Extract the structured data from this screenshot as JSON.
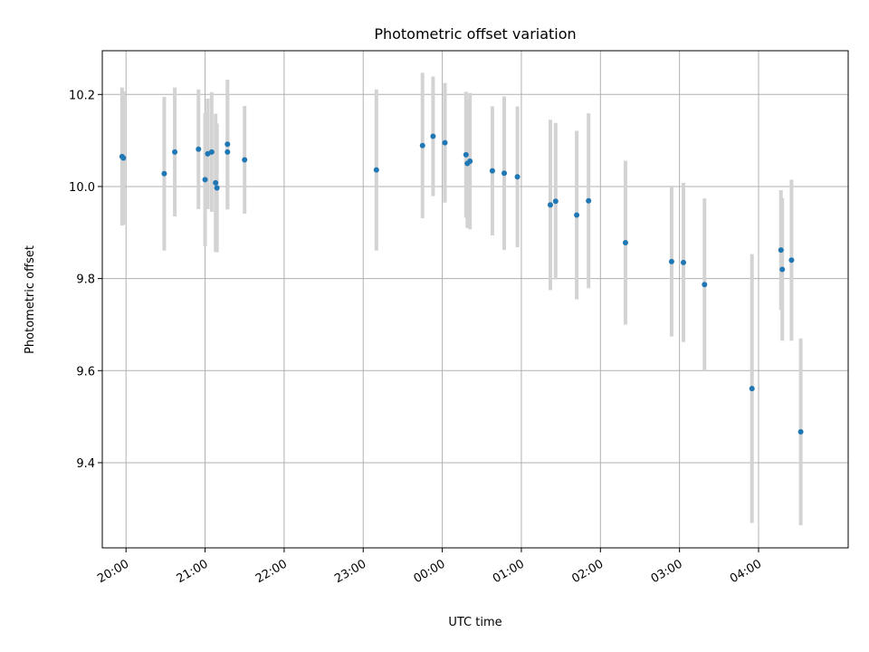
{
  "chart_data": {
    "type": "scatter",
    "title": "Photometric offset variation",
    "xlabel": "UTC time",
    "ylabel": "Photometric offset",
    "xlim": [
      "19:42",
      "29:08"
    ],
    "ylim": [
      9.215,
      10.295
    ],
    "grid": true,
    "x_ticks": [
      {
        "label": "20:00",
        "t": "20:00"
      },
      {
        "label": "21:00",
        "t": "21:00"
      },
      {
        "label": "22:00",
        "t": "22:00"
      },
      {
        "label": "23:00",
        "t": "23:00"
      },
      {
        "label": "00:00",
        "t": "24:00"
      },
      {
        "label": "01:00",
        "t": "25:00"
      },
      {
        "label": "02:00",
        "t": "26:00"
      },
      {
        "label": "03:00",
        "t": "27:00"
      },
      {
        "label": "04:00",
        "t": "28:00"
      }
    ],
    "y_ticks": [
      {
        "label": "9.4",
        "value": 9.4
      },
      {
        "label": "9.6",
        "value": 9.6
      },
      {
        "label": "9.8",
        "value": 9.8
      },
      {
        "label": "10.0",
        "value": 10.0
      },
      {
        "label": "10.2",
        "value": 10.2
      }
    ],
    "marker_color": "#1f77b4",
    "errorbar_color": "#d3d3d3",
    "points": [
      {
        "t": "19:57",
        "y": 10.065,
        "err": 0.15
      },
      {
        "t": "19:58",
        "y": 10.062,
        "err": 0.145
      },
      {
        "t": "20:29",
        "y": 10.028,
        "err": 0.167
      },
      {
        "t": "20:37",
        "y": 10.075,
        "err": 0.14
      },
      {
        "t": "20:55",
        "y": 10.081,
        "err": 0.13
      },
      {
        "t": "21:00",
        "y": 10.015,
        "err": 0.145
      },
      {
        "t": "21:02",
        "y": 10.071,
        "err": 0.12
      },
      {
        "t": "21:05",
        "y": 10.075,
        "err": 0.13
      },
      {
        "t": "21:08",
        "y": 10.008,
        "err": 0.15
      },
      {
        "t": "21:09",
        "y": 9.997,
        "err": 0.14
      },
      {
        "t": "21:17",
        "y": 10.092,
        "err": 0.14
      },
      {
        "t": "21:17",
        "y": 10.075,
        "err": 0.125
      },
      {
        "t": "21:30",
        "y": 10.058,
        "err": 0.117
      },
      {
        "t": "23:10",
        "y": 10.036,
        "err": 0.175
      },
      {
        "t": "23:45",
        "y": 10.089,
        "err": 0.158
      },
      {
        "t": "23:53",
        "y": 10.109,
        "err": 0.13
      },
      {
        "t": "24:02",
        "y": 10.095,
        "err": 0.13
      },
      {
        "t": "24:18",
        "y": 10.069,
        "err": 0.137
      },
      {
        "t": "24:19",
        "y": 10.05,
        "err": 0.14
      },
      {
        "t": "24:21",
        "y": 10.055,
        "err": 0.148
      },
      {
        "t": "24:38",
        "y": 10.034,
        "err": 0.14
      },
      {
        "t": "24:47",
        "y": 10.029,
        "err": 0.167
      },
      {
        "t": "24:57",
        "y": 10.021,
        "err": 0.153
      },
      {
        "t": "25:22",
        "y": 9.96,
        "err": 0.185
      },
      {
        "t": "25:26",
        "y": 9.968,
        "err": 0.17
      },
      {
        "t": "25:42",
        "y": 9.938,
        "err": 0.183
      },
      {
        "t": "25:51",
        "y": 9.969,
        "err": 0.19
      },
      {
        "t": "26:19",
        "y": 9.878,
        "err": 0.178
      },
      {
        "t": "26:54",
        "y": 9.837,
        "err": 0.163
      },
      {
        "t": "27:03",
        "y": 9.835,
        "err": 0.173
      },
      {
        "t": "27:19",
        "y": 9.787,
        "err": 0.187
      },
      {
        "t": "27:55",
        "y": 9.561,
        "err": 0.292
      },
      {
        "t": "28:17",
        "y": 9.862,
        "err": 0.13
      },
      {
        "t": "28:18",
        "y": 9.82,
        "err": 0.155
      },
      {
        "t": "28:25",
        "y": 9.84,
        "err": 0.175
      },
      {
        "t": "28:32",
        "y": 9.467,
        "err": 0.203
      }
    ]
  }
}
